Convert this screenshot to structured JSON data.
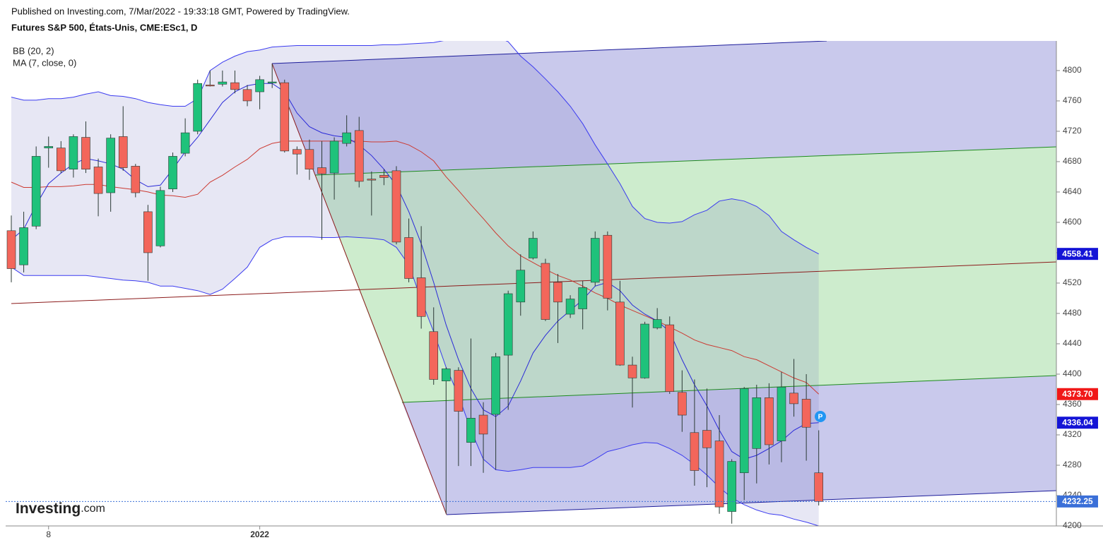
{
  "chart_data": {
    "type": "candlestick",
    "published": "Published on Investing.com, 7/Mar/2022 - 19:33:18 GMT, Powered by TradingView.",
    "title": "Futures S&P 500, États-Unis, CME:ESc1, D",
    "logo": [
      "Investing",
      ".com"
    ],
    "marker": "P",
    "categories": [
      null,
      null,
      null,
      "8",
      null,
      null,
      null,
      null,
      null,
      null,
      null,
      null,
      null,
      null,
      null,
      null,
      null,
      null,
      null,
      null,
      "2022",
      null,
      null,
      null,
      null,
      null,
      null,
      null,
      null,
      null,
      null,
      null,
      null,
      null,
      null,
      null,
      null,
      null,
      null,
      null,
      null,
      null,
      null,
      null,
      null,
      null,
      null,
      null,
      null,
      null,
      null,
      null,
      null,
      null,
      null,
      null,
      null,
      null,
      null,
      null,
      null,
      null,
      null,
      null,
      null,
      null
    ],
    "open": [
      4589,
      4544,
      4595,
      4698,
      4698,
      4670,
      4712,
      4673,
      4639,
      4713,
      4674,
      4614,
      4569,
      4644,
      4691,
      4720,
      4781,
      4782,
      4784,
      4775,
      4772,
      4785,
      4784,
      4696,
      4696,
      4672,
      4665,
      4704,
      4721,
      4657,
      4662,
      4668,
      4580,
      4527,
      4456,
      4391,
      4405,
      4310,
      4346,
      4347,
      4425,
      4495,
      4553,
      4546,
      4521,
      4479,
      4486,
      4521,
      4583,
      4495,
      4412,
      4395,
      4461,
      4465,
      4376,
      4323,
      4326,
      4312,
      4219,
      4270,
      4302,
      4369,
      4312,
      4375,
      4367,
      4270
    ],
    "high": [
      4609,
      4614,
      4700,
      4713,
      4707,
      4716,
      4733,
      4684,
      4716,
      4753,
      4677,
      4623,
      4647,
      4692,
      4737,
      4788,
      4800,
      4800,
      4800,
      4781,
      4793,
      4809,
      4788,
      4700,
      4709,
      4707,
      4712,
      4741,
      4739,
      4667,
      4670,
      4674,
      4605,
      4595,
      4488,
      4409,
      4409,
      4447,
      4363,
      4428,
      4510,
      4558,
      4588,
      4552,
      4532,
      4504,
      4523,
      4588,
      4588,
      4523,
      4423,
      4469,
      4487,
      4476,
      4405,
      4393,
      4381,
      4346,
      4288,
      4383,
      4386,
      4388,
      4403,
      4420,
      4400,
      4326
    ],
    "low": [
      4521,
      4534,
      4591,
      4672,
      4665,
      4659,
      4665,
      4608,
      4614,
      4668,
      4633,
      4523,
      4567,
      4640,
      4687,
      4716,
      4779,
      4779,
      4770,
      4753,
      4749,
      4777,
      4692,
      4663,
      4656,
      4577,
      4630,
      4700,
      4646,
      4609,
      4649,
      4571,
      4521,
      4460,
      4386,
      4216,
      4279,
      4279,
      4270,
      4274,
      4353,
      4477,
      4551,
      4470,
      4441,
      4474,
      4459,
      4516,
      4484,
      4411,
      4356,
      4394,
      4459,
      4374,
      4324,
      4253,
      4251,
      4216,
      4203,
      4234,
      4256,
      4281,
      4284,
      4344,
      4286,
      4227
    ],
    "close": [
      4539,
      4593,
      4687,
      4700,
      4668,
      4713,
      4670,
      4638,
      4711,
      4672,
      4639,
      4560,
      4642,
      4687,
      4718,
      4783,
      4780,
      4785,
      4775,
      4760,
      4788,
      4785,
      4694,
      4690,
      4670,
      4664,
      4707,
      4718,
      4654,
      4656,
      4659,
      4574,
      4526,
      4476,
      4393,
      4407,
      4351,
      4342,
      4321,
      4423,
      4506,
      4537,
      4579,
      4472,
      4495,
      4499,
      4514,
      4579,
      4500,
      4412,
      4395,
      4466,
      4472,
      4377,
      4346,
      4273,
      4303,
      4225,
      4285,
      4381,
      4369,
      4307,
      4383,
      4361,
      4330,
      4232.25
    ],
    "up_color": "#1fc27b",
    "down_color": "#f3665b",
    "wick_color": "#2b3a35",
    "indicators": [
      {
        "name": "BB (20, 2)",
        "color": "#3b3bf0",
        "basis_color": "#cc3a32",
        "fill": "rgba(110,110,190,0.17)",
        "upper": [
          4765,
          4761,
          4761,
          4763,
          4763,
          4765,
          4769,
          4772,
          4767,
          4766,
          4763,
          4758,
          4755,
          4753,
          4753,
          4763,
          4800,
          4811,
          4819,
          4825,
          4827,
          4831,
          4832,
          4833,
          4833,
          4833,
          4833,
          4833,
          4833,
          4833,
          4834,
          4834,
          4835,
          4836,
          4837,
          4840,
          4845,
          4848,
          4848,
          4845,
          4838,
          4819,
          4805,
          4789,
          4772,
          4753,
          4730,
          4702,
          4677,
          4651,
          4621,
          4605,
          4600,
          4599,
          4601,
          4610,
          4616,
          4628,
          4631,
          4628,
          4621,
          4609,
          4588,
          4577,
          4567,
          4558.41
        ],
        "basis": [
          4653,
          4646,
          4646,
          4647,
          4647,
          4648,
          4650,
          4650,
          4647,
          4645,
          4643,
          4640,
          4636,
          4635,
          4633,
          4637,
          4653,
          4662,
          4673,
          4683,
          4697,
          4704,
          4707,
          4707,
          4707,
          4707,
          4707,
          4707,
          4707,
          4706,
          4706,
          4707,
          4702,
          4693,
          4681,
          4660,
          4642,
          4623,
          4605,
          4586,
          4569,
          4556,
          4547,
          4538,
          4530,
          4524,
          4516,
          4507,
          4500,
          4491,
          4484,
          4477,
          4470,
          4462,
          4454,
          4445,
          4439,
          4435,
          4431,
          4423,
          4419,
          4411,
          4403,
          4395,
          4389,
          4373.7
        ],
        "lower": [
          4541,
          4530,
          4530,
          4530,
          4530,
          4530,
          4530,
          4528,
          4526,
          4524,
          4523,
          4521,
          4516,
          4516,
          4513,
          4510,
          4505,
          4512,
          4526,
          4541,
          4567,
          4577,
          4581,
          4581,
          4581,
          4580,
          4580,
          4581,
          4580,
          4579,
          4577,
          4567,
          4544,
          4498,
          4456,
          4409,
          4372,
          4326,
          4288,
          4274,
          4272,
          4274,
          4277,
          4277,
          4277,
          4277,
          4279,
          4288,
          4298,
          4302,
          4307,
          4310,
          4309,
          4302,
          4293,
          4281,
          4267,
          4251,
          4237,
          4228,
          4221,
          4216,
          4214,
          4209,
          4205,
          4200
        ]
      },
      {
        "name": "MA (7, close, 0)",
        "color": "#2a2ad8",
        "values": [
          4577,
          4591,
          4623,
          4651,
          4665,
          4677,
          4684,
          4681,
          4677,
          4670,
          4656,
          4647,
          4649,
          4670,
          4693,
          4712,
          4735,
          4758,
          4772,
          4780,
          4783,
          4783,
          4772,
          4744,
          4726,
          4718,
          4714,
          4712,
          4702,
          4688,
          4670,
          4649,
          4614,
          4572,
          4521,
          4465,
          4419,
          4381,
          4353,
          4344,
          4358,
          4391,
          4428,
          4451,
          4470,
          4484,
          4498,
          4516,
          4521,
          4510,
          4491,
          4479,
          4470,
          4456,
          4419,
          4386,
          4358,
          4326,
          4298,
          4288,
          4293,
          4302,
          4312,
          4326,
          4335,
          4336.04
        ]
      }
    ],
    "price_labels": [
      {
        "value": 4558.41,
        "label": "4558.41",
        "color": "#1414d6"
      },
      {
        "value": 4373.7,
        "label": "4373.70",
        "color": "#f01818"
      },
      {
        "value": 4336.04,
        "label": "4336.04",
        "color": "#1414d6"
      },
      {
        "value": 4232.25,
        "label": "4232.25",
        "color": "#3a6fd8"
      }
    ],
    "ylim": [
      4200,
      4839
    ],
    "yticks": [
      4200,
      4240,
      4280,
      4320,
      4360,
      4400,
      4440,
      4480,
      4520,
      4560,
      4600,
      4640,
      4680,
      4720,
      4760,
      4800
    ]
  }
}
